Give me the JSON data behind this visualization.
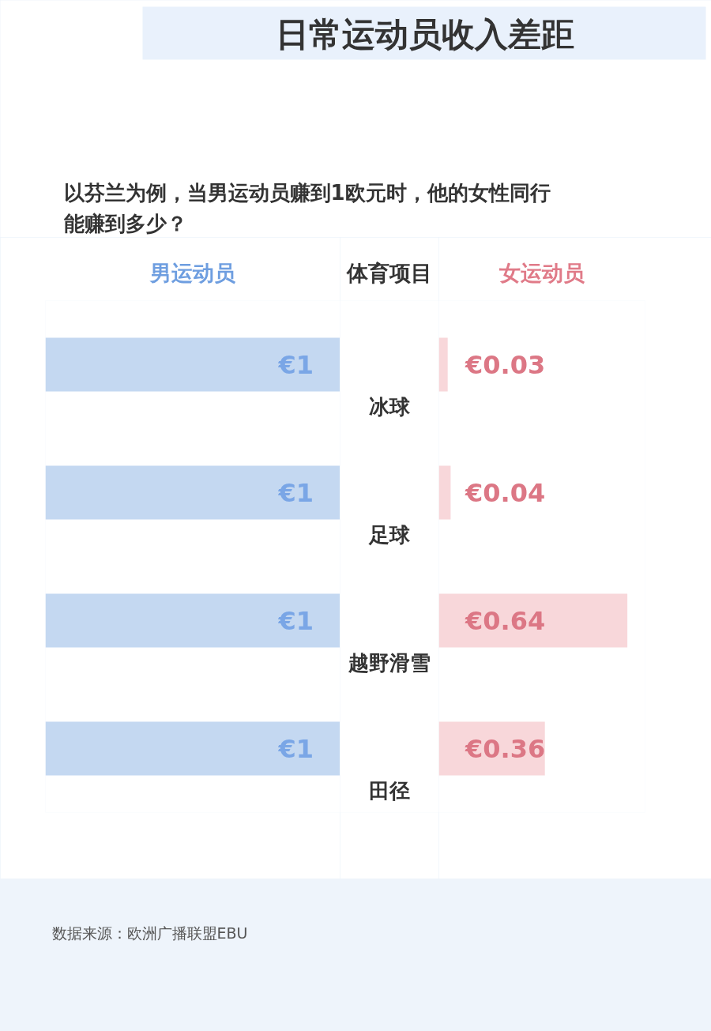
{
  "chart_data": [
    {
      "type": "bar",
      "orientation": "horizontal",
      "title": "日常运动员收入差距",
      "subtitle": "以芬兰为例，当男运动员赚到1欧元时，他的女性同行能赚到多少？",
      "xlabel": "男运动员",
      "ylabel": "体育项目",
      "categories": [
        "冰球",
        "足球",
        "越野滑雪",
        "田径"
      ],
      "values": [
        1,
        1,
        1,
        1
      ],
      "value_labels": [
        "€1",
        "€1",
        "€1",
        "€1"
      ],
      "color": "#c4d8f1",
      "xlim": [
        1,
        0
      ],
      "tick_labels": "y"
    },
    {
      "type": "bar",
      "orientation": "horizontal",
      "xlabel": "女运动员",
      "categories": [
        "冰球",
        "足球",
        "越野滑雪",
        "田径"
      ],
      "values": [
        0.03,
        0.04,
        0.64,
        0.36
      ],
      "value_labels": [
        "€0.03",
        "€0.04",
        "€0.64",
        "€0.36"
      ],
      "color": "#f8d7da",
      "xlim": [
        0,
        0.7
      ],
      "tick_labels": false,
      "annotations": [
        "数据来源：欧洲广播联盟EBU"
      ]
    }
  ]
}
